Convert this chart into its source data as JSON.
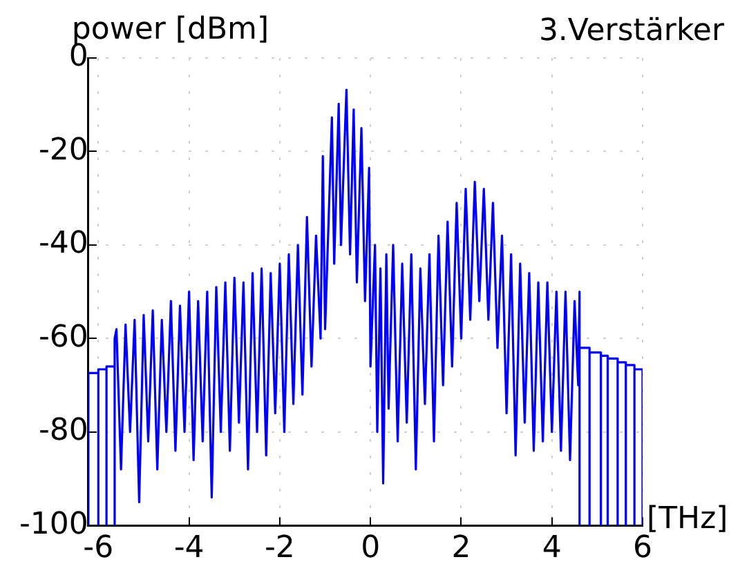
{
  "chart_data": {
    "type": "line",
    "title": "3.Verstärker",
    "ylabel": "power [dBm]",
    "xlabel": "[THz]",
    "xlim": [
      -6.22,
      6
    ],
    "xticks": [
      -6,
      -4,
      -2,
      0,
      2,
      4,
      6
    ],
    "ylim": [
      -100,
      0
    ],
    "yticks": [
      0,
      -20,
      -40,
      -60,
      -80,
      -100
    ],
    "grid": true,
    "marker": "none",
    "line_style": "solid",
    "series": [
      {
        "color": "#0000ff",
        "x": [
          -6.22,
          -6.22,
          -6.0,
          -6.0,
          -6.0,
          -5.82,
          -5.82,
          -5.82,
          -5.64,
          -5.64,
          -5.64,
          -5.6,
          -5.5,
          -5.4,
          -5.3,
          -5.2,
          -5.1,
          -5.0,
          -4.9,
          -4.8,
          -4.7,
          -4.6,
          -4.5,
          -4.4,
          -4.3,
          -4.2,
          -4.1,
          -4.0,
          -3.9,
          -3.8,
          -3.7,
          -3.6,
          -3.5,
          -3.4,
          -3.3,
          -3.2,
          -3.1,
          -3.0,
          -2.9,
          -2.8,
          -2.7,
          -2.6,
          -2.5,
          -2.4,
          -2.3,
          -2.2,
          -2.1,
          -2.0,
          -1.9,
          -1.8,
          -1.7,
          -1.6,
          -1.5,
          -1.4,
          -1.3,
          -1.2,
          -1.1,
          -1.05,
          -1.0,
          -0.85,
          -0.8,
          -0.7,
          -0.65,
          -0.53,
          -0.45,
          -0.37,
          -0.3,
          -0.2,
          -0.12,
          -0.03,
          0.0,
          0.1,
          0.15,
          0.22,
          0.28,
          0.35,
          0.4,
          0.5,
          0.6,
          0.7,
          0.8,
          0.9,
          1.0,
          1.1,
          1.2,
          1.3,
          1.4,
          1.5,
          1.6,
          1.7,
          1.8,
          1.9,
          2.0,
          2.1,
          2.2,
          2.3,
          2.4,
          2.5,
          2.6,
          2.7,
          2.8,
          2.9,
          3.0,
          3.1,
          3.2,
          3.3,
          3.4,
          3.5,
          3.6,
          3.7,
          3.8,
          3.9,
          4.0,
          4.1,
          4.2,
          4.3,
          4.4,
          4.5,
          4.58,
          4.61,
          4.61,
          4.61,
          4.83,
          4.83,
          4.83,
          5.08,
          5.08,
          5.08,
          5.23,
          5.23,
          5.23,
          5.45,
          5.45,
          5.45,
          5.63,
          5.63,
          5.63,
          5.82,
          5.82,
          5.82,
          6.0,
          6.0
        ],
        "values": [
          -100,
          -67.4,
          -67.4,
          -100,
          -66.6,
          -66.6,
          -100,
          -66,
          -66,
          -100,
          -60,
          -58,
          -88,
          -57,
          -80,
          -56,
          -95,
          -55,
          -82,
          -54,
          -88,
          -56,
          -80,
          -52,
          -84,
          -53,
          -80,
          -50,
          -86,
          -52,
          -82,
          -50,
          -94,
          -49,
          -80,
          -48,
          -84,
          -47,
          -78,
          -48,
          -88,
          -46,
          -80,
          -45,
          -85,
          -46,
          -76,
          -44,
          -80,
          -42,
          -74,
          -40,
          -72,
          -34,
          -66,
          -38,
          -60,
          -21,
          -58,
          -12.7,
          -44,
          -9.8,
          -40,
          -6.8,
          -42,
          -11,
          -48,
          -15,
          -52,
          -23.5,
          -66,
          -40,
          -80,
          -45,
          -91,
          -42,
          -75,
          -40,
          -82,
          -44,
          -78,
          -42,
          -88,
          -45,
          -74,
          -42,
          -82,
          -38,
          -70,
          -35,
          -66,
          -31,
          -60,
          -28,
          -56,
          -26.5,
          -52,
          -28,
          -56,
          -31,
          -62,
          -38,
          -76,
          -42,
          -85,
          -44,
          -78,
          -46,
          -84,
          -48,
          -82,
          -48,
          -80,
          -50,
          -84,
          -50,
          -86,
          -52,
          -70,
          -50,
          -100,
          -62,
          -62,
          -100,
          -63,
          -63,
          -100,
          -63.7,
          -63.7,
          -100,
          -64.3,
          -64.3,
          -100,
          -65.1,
          -65.1,
          -100,
          -65.7,
          -65.7,
          -100,
          -66.6,
          -66.6,
          -100
        ]
      }
    ]
  }
}
